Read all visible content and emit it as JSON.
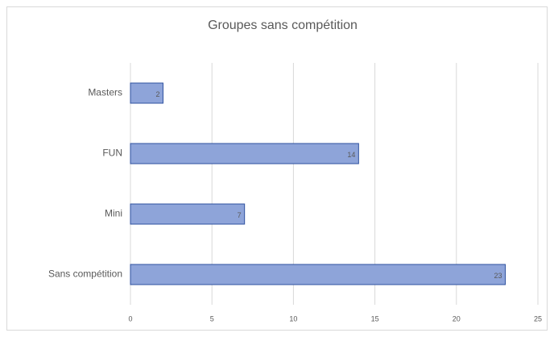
{
  "chart_data": {
    "type": "bar",
    "orientation": "horizontal",
    "title": "Groupes sans compétition",
    "categories": [
      "Masters",
      "FUN",
      "Mini",
      "Sans compétition"
    ],
    "values": [
      2,
      14,
      7,
      23
    ],
    "color": "#8ea4d9",
    "edge_color": "#2f52a0",
    "xlim": [
      0,
      25
    ],
    "xticks": [
      0,
      5,
      10,
      15,
      20,
      25
    ],
    "grid": true
  }
}
